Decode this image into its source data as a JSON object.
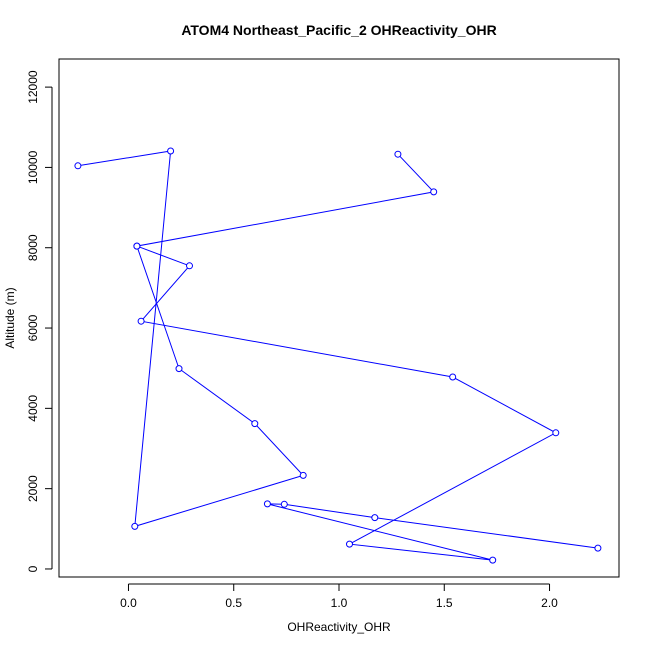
{
  "chart_data": {
    "type": "line",
    "title": "ATOM4 Northeast_Pacific_2 OHReactivity_OHR",
    "xlabel": "OHReactivity_OHR",
    "ylabel": "Altitude (m)",
    "xlim": [
      -0.33,
      2.33
    ],
    "ylim": [
      -200,
      12700
    ],
    "x_ticks": [
      0.0,
      0.5,
      1.0,
      1.5,
      2.0
    ],
    "x_tick_labels": [
      "0.0",
      "0.5",
      "1.0",
      "1.5",
      "2.0"
    ],
    "y_ticks": [
      0,
      2000,
      4000,
      6000,
      8000,
      10000,
      12000
    ],
    "y_tick_labels": [
      "0",
      "2000",
      "4000",
      "6000",
      "8000",
      "10000",
      "12000"
    ],
    "grid": false,
    "legend": "none",
    "series": [
      {
        "color": "#0000ff",
        "marker": "open-circle",
        "x": [
          1.28,
          1.45,
          0.04,
          0.29,
          0.06,
          1.54,
          2.03,
          1.05,
          1.73,
          0.66,
          0.74,
          1.17,
          2.23
        ],
        "y": [
          10330,
          9390,
          8040,
          7550,
          6170,
          4780,
          3390,
          620,
          220,
          1620,
          1610,
          1280,
          520
        ]
      },
      {
        "color": "#0000ff",
        "marker": "open-circle",
        "x": [
          -0.24,
          0.2,
          0.03,
          0.83,
          0.6,
          0.24,
          0.04
        ],
        "y": [
          10040,
          10410,
          1060,
          2330,
          3620,
          4990,
          8040
        ]
      }
    ]
  }
}
